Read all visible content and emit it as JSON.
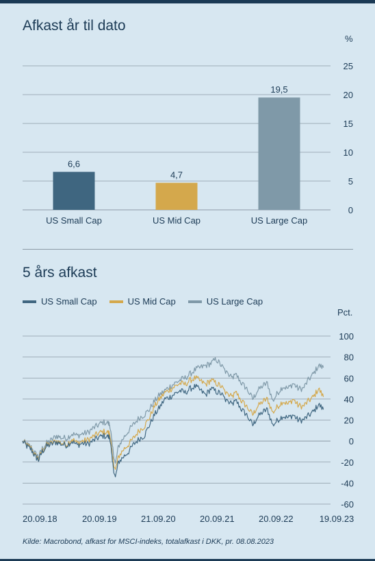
{
  "colors": {
    "small_cap": "#3f6680",
    "mid_cap": "#d4a84c",
    "large_cap": "#7f99a8",
    "text": "#1b3a55",
    "grid": "#8c9aa6"
  },
  "chart_data": [
    {
      "type": "bar",
      "title": "Afkast år til dato",
      "unit": "%",
      "categories": [
        "US Small Cap",
        "US Mid Cap",
        "US Large Cap"
      ],
      "values": [
        6.6,
        4.7,
        19.5
      ],
      "value_labels": [
        "6,6",
        "4,7",
        "19,5"
      ],
      "ylim": [
        0,
        25
      ],
      "yticks": [
        0,
        5,
        10,
        15,
        20,
        25
      ],
      "yaxis_position": "right",
      "grid": true
    },
    {
      "type": "line",
      "title": "5 års afkast",
      "unit": "Pct.",
      "legend_position": "top-left",
      "ylim": [
        -60,
        100
      ],
      "yticks": [
        -60,
        -40,
        -20,
        0,
        20,
        40,
        60,
        80,
        100
      ],
      "ytick_labels": [
        "-60",
        "-40",
        "-20",
        "0",
        "20",
        "40",
        "60",
        "80",
        "100"
      ],
      "yaxis_position": "right",
      "xlim": [
        "2018-09-20",
        "2023-09-19"
      ],
      "xticks": [
        "20.09.18",
        "20.09.19",
        "21.09.20",
        "20.09.21",
        "20.09.22",
        "19.09.23"
      ],
      "grid": true,
      "x": [
        "2018-09-20",
        "2018-10-15",
        "2018-11-10",
        "2018-12-05",
        "2018-12-24",
        "2019-01-15",
        "2019-02-10",
        "2019-03-10",
        "2019-04-10",
        "2019-05-10",
        "2019-06-10",
        "2019-07-10",
        "2019-08-10",
        "2019-09-10",
        "2019-10-10",
        "2019-11-10",
        "2019-12-10",
        "2020-01-10",
        "2020-02-10",
        "2020-02-20",
        "2020-03-05",
        "2020-03-23",
        "2020-04-10",
        "2020-05-10",
        "2020-06-10",
        "2020-07-10",
        "2020-08-10",
        "2020-09-10",
        "2020-10-10",
        "2020-11-10",
        "2020-12-10",
        "2021-01-10",
        "2021-02-10",
        "2021-03-10",
        "2021-04-10",
        "2021-05-10",
        "2021-06-10",
        "2021-07-10",
        "2021-08-10",
        "2021-09-10",
        "2021-10-10",
        "2021-11-10",
        "2021-12-10",
        "2022-01-10",
        "2022-02-10",
        "2022-03-10",
        "2022-04-10",
        "2022-05-10",
        "2022-06-15",
        "2022-07-10",
        "2022-08-15",
        "2022-09-10",
        "2022-10-12",
        "2022-11-10",
        "2022-12-10",
        "2023-01-10",
        "2023-02-10",
        "2023-03-10",
        "2023-04-10",
        "2023-05-10",
        "2023-06-10",
        "2023-07-10",
        "2023-08-08"
      ],
      "series": [
        {
          "name": "US Small Cap",
          "values": [
            0,
            -5,
            -8,
            -15,
            -18,
            -10,
            -5,
            -3,
            -1,
            -3,
            -4,
            0,
            -4,
            -2,
            -3,
            0,
            3,
            5,
            4,
            3,
            -20,
            -35,
            -20,
            -15,
            -10,
            -3,
            2,
            5,
            15,
            25,
            32,
            40,
            42,
            45,
            48,
            46,
            50,
            52,
            48,
            44,
            50,
            47,
            45,
            38,
            35,
            38,
            30,
            25,
            15,
            22,
            28,
            30,
            15,
            20,
            24,
            22,
            25,
            20,
            20,
            24,
            28,
            35,
            30
          ]
        },
        {
          "name": "US Mid Cap",
          "values": [
            0,
            -4,
            -7,
            -14,
            -17,
            -9,
            -4,
            -2,
            0,
            -2,
            -3,
            2,
            -2,
            0,
            1,
            4,
            7,
            9,
            8,
            7,
            -15,
            -28,
            -15,
            -8,
            -3,
            3,
            10,
            14,
            22,
            33,
            40,
            46,
            49,
            52,
            55,
            54,
            58,
            60,
            57,
            54,
            58,
            55,
            52,
            45,
            42,
            46,
            38,
            33,
            25,
            32,
            38,
            40,
            27,
            33,
            38,
            35,
            40,
            34,
            33,
            38,
            42,
            50,
            42
          ]
        },
        {
          "name": "US Large Cap",
          "values": [
            0,
            -3,
            -6,
            -12,
            -15,
            -7,
            -2,
            1,
            5,
            3,
            3,
            7,
            5,
            7,
            8,
            12,
            15,
            18,
            17,
            15,
            -5,
            -22,
            -5,
            3,
            10,
            16,
            22,
            25,
            30,
            38,
            44,
            48,
            52,
            55,
            58,
            60,
            64,
            68,
            70,
            72,
            74,
            78,
            72,
            65,
            60,
            63,
            55,
            50,
            40,
            47,
            53,
            55,
            38,
            46,
            52,
            50,
            55,
            50,
            50,
            58,
            64,
            72,
            70
          ]
        }
      ]
    }
  ],
  "source": "Kilde: Macrobond, afkast for MSCI-indeks, totalafkast i DKK, pr. 08.08.2023"
}
